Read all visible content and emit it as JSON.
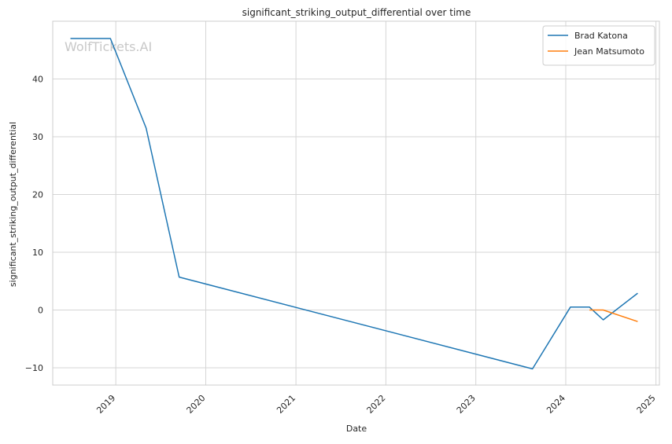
{
  "chart_data": {
    "type": "line",
    "title": "significant_striking_output_differential over time",
    "xlabel": "Date",
    "ylabel": "significant_striking_output_differential",
    "x_type": "date",
    "xlim": [
      "2018-04-20",
      "2025-01-15"
    ],
    "ylim": [
      -13,
      50
    ],
    "xticks": [
      "2019-01-01",
      "2020-01-01",
      "2021-01-01",
      "2022-01-01",
      "2023-01-01",
      "2024-01-01",
      "2025-01-01"
    ],
    "xtick_labels": [
      "2019",
      "2020",
      "2021",
      "2022",
      "2023",
      "2024",
      "2025"
    ],
    "yticks": [
      -10,
      0,
      10,
      20,
      30,
      40
    ],
    "ytick_labels": [
      "−10",
      "0",
      "10",
      "20",
      "30",
      "40"
    ],
    "grid": true,
    "legend_position": "top-right",
    "watermark": "WolfTickets.AI",
    "series": [
      {
        "name": "Brad Katona",
        "color": "#1f77b4",
        "points": [
          {
            "x": "2018-07-01",
            "y": 47.0
          },
          {
            "x": "2018-12-10",
            "y": 47.0
          },
          {
            "x": "2019-05-04",
            "y": 31.5
          },
          {
            "x": "2019-09-15",
            "y": 5.7
          },
          {
            "x": "2023-08-19",
            "y": -10.2
          },
          {
            "x": "2024-01-20",
            "y": 0.5
          },
          {
            "x": "2024-04-06",
            "y": 0.5
          },
          {
            "x": "2024-06-01",
            "y": -1.7
          },
          {
            "x": "2024-10-19",
            "y": 2.9
          }
        ]
      },
      {
        "name": "Jean Matsumoto",
        "color": "#ff7f0e",
        "points": [
          {
            "x": "2024-04-06",
            "y": 0.0
          },
          {
            "x": "2024-06-01",
            "y": 0.0
          },
          {
            "x": "2024-10-19",
            "y": -2.0
          }
        ]
      }
    ]
  }
}
